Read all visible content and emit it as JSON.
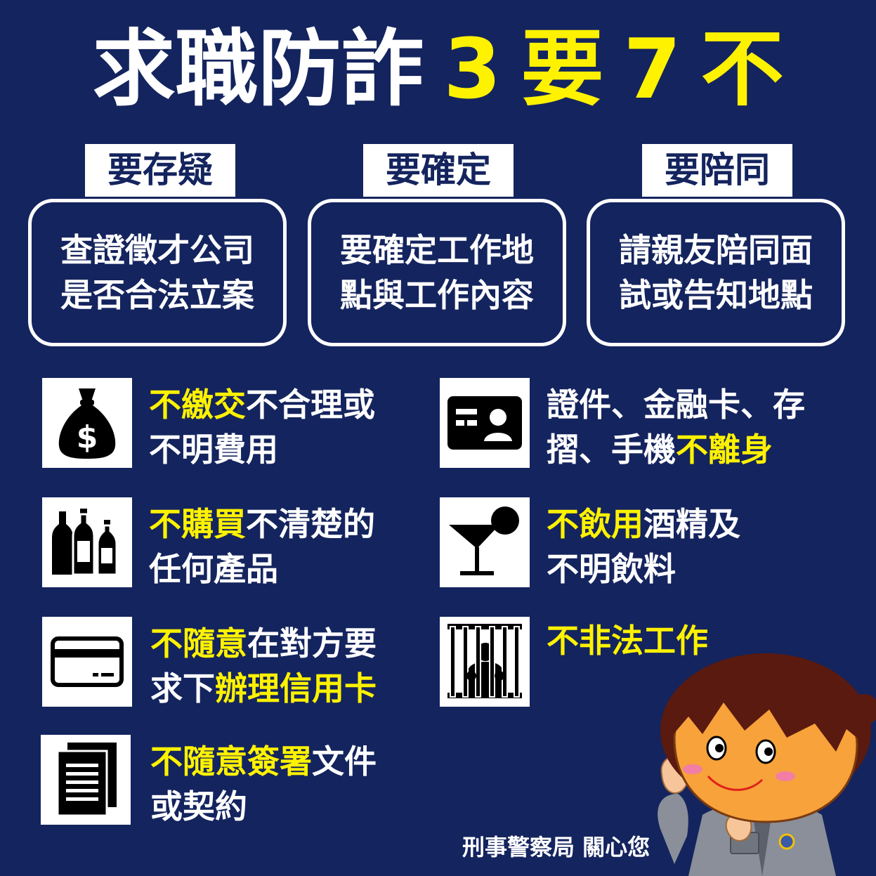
{
  "title": {
    "part1": "求職防詐",
    "num3": "3",
    "yao": "要",
    "num7": "7",
    "bu": "不"
  },
  "dos": [
    {
      "tag": "要存疑",
      "line1": "查證徵才公司",
      "line2": "是否合法立案"
    },
    {
      "tag": "要確定",
      "line1": "要確定工作地",
      "line2": "點與工作內容"
    },
    {
      "tag": "要陪同",
      "line1": "請親友陪同面",
      "line2": "試或告知地點"
    }
  ],
  "donts": [
    {
      "icon": "money-bag-icon",
      "segments": [
        [
          "不繳交",
          "y"
        ],
        [
          "不合理或",
          ""
        ]
      ],
      "segments2": [
        [
          "不明費用",
          ""
        ]
      ]
    },
    {
      "icon": "id-card-icon",
      "segments": [
        [
          "證件、金融卡、存",
          ""
        ]
      ],
      "segments2": [
        [
          "摺、手機",
          ""
        ],
        [
          "不離身",
          "y"
        ]
      ]
    },
    {
      "icon": "bottles-icon",
      "segments": [
        [
          "不購買",
          "y"
        ],
        [
          "不清楚的",
          ""
        ]
      ],
      "segments2": [
        [
          "任何產品",
          ""
        ]
      ]
    },
    {
      "icon": "cocktail-icon",
      "segments": [
        [
          "不飲用",
          "y"
        ],
        [
          "酒精及",
          ""
        ]
      ],
      "segments2": [
        [
          "不明飲料",
          ""
        ]
      ]
    },
    {
      "icon": "credit-card-icon",
      "segments": [
        [
          "不隨意",
          "y"
        ],
        [
          "在對方要",
          ""
        ]
      ],
      "segments2": [
        [
          "求下",
          ""
        ],
        [
          "辦理信用卡",
          "y"
        ]
      ]
    },
    {
      "icon": "jail-icon",
      "segments": [
        [
          "不非法工作",
          "y"
        ]
      ],
      "segments2": []
    },
    {
      "icon": "documents-icon",
      "segments": [
        [
          "不隨意簽署",
          "y"
        ],
        [
          "文件",
          ""
        ]
      ],
      "segments2": [
        [
          "或契約",
          ""
        ]
      ]
    }
  ],
  "footer": "刑事警察局 關心您",
  "colors": {
    "background": "#14245e",
    "highlight": "#fff200",
    "text": "#ffffff"
  }
}
